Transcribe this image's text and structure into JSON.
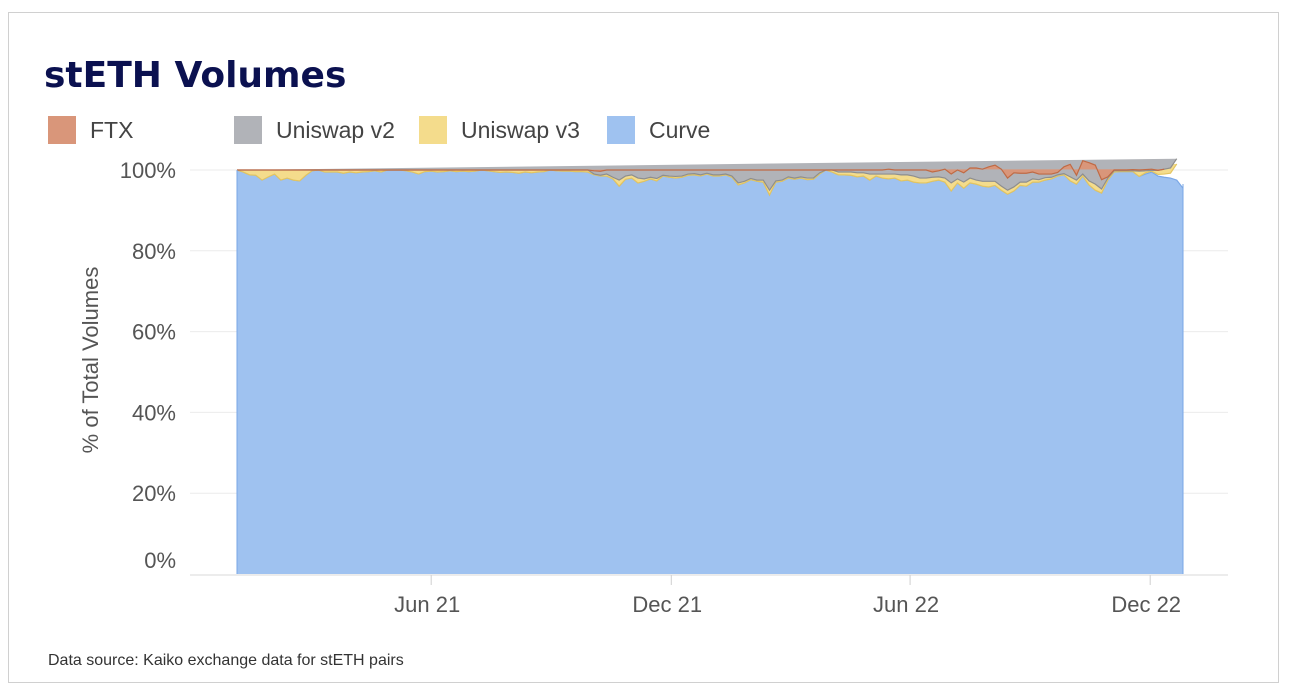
{
  "chart_data": {
    "type": "area",
    "stacked": true,
    "normalized": true,
    "title": "stETH Volumes",
    "ylabel": "% of Total Volumes",
    "ylim": [
      0,
      100
    ],
    "yticks": [
      "0%",
      "20%",
      "40%",
      "60%",
      "80%",
      "100%"
    ],
    "x_range": [
      "2021-01-04",
      "2022-12-26"
    ],
    "xticks": [
      {
        "label": "Jun 21",
        "date": "2021-06-01"
      },
      {
        "label": "Dec 21",
        "date": "2021-12-01"
      },
      {
        "label": "Jun 22",
        "date": "2022-06-01"
      },
      {
        "label": "Dec 22",
        "date": "2022-12-01"
      }
    ],
    "legend": [
      {
        "name": "FTX",
        "color": "#d9967a"
      },
      {
        "name": "Uniswap v2",
        "color": "#b1b3b8"
      },
      {
        "name": "Uniswap v3",
        "color": "#f4dc8c"
      },
      {
        "name": "Curve",
        "color": "#9fc2f0"
      }
    ],
    "series": [
      {
        "name": "Curve",
        "color": "#9fc2f0",
        "line": "#7aa7e6",
        "values": [
          100,
          99.5,
          98.8,
          98.7,
          97.5,
          98.3,
          99,
          97.5,
          98,
          97.5,
          97.3,
          98.7,
          99.8,
          100,
          99.5,
          99.5,
          99.5,
          99.2,
          99.5,
          99.3,
          99.5,
          99.6,
          99.8,
          99.5,
          100,
          100,
          100,
          99.8,
          99.5,
          99,
          99.6,
          99.7,
          99.5,
          99.6,
          99.8,
          99.6,
          99.7,
          99.6,
          99.7,
          100,
          99.8,
          99.6,
          99.4,
          99.5,
          99.4,
          99.2,
          99.5,
          99.3,
          99.5,
          99.6,
          100,
          99.8,
          99.7,
          99.7,
          99.6,
          99.6,
          99.5,
          98.8,
          98.5,
          98.5,
          97.8,
          96,
          97.7,
          98,
          96.8,
          97.2,
          97.8,
          97.3,
          98.5,
          98.2,
          98,
          98.2,
          98.7,
          98.8,
          98.5,
          99,
          98.5,
          98.5,
          98.8,
          98.2,
          96.3,
          96.8,
          97.6,
          97.2,
          97,
          93.8,
          97,
          97.2,
          98,
          97.7,
          98,
          97.6,
          97.7,
          99,
          100,
          99.5,
          98.8,
          98.8,
          98.7,
          98.3,
          98.5,
          97.5,
          98.5,
          98,
          97.8,
          98,
          97.3,
          97.5,
          97,
          96.8,
          96.8,
          97.2,
          97.5,
          97,
          94.8,
          96.8,
          95.5,
          96.8,
          96.5,
          96,
          95.8,
          96.2,
          95,
          94,
          94.8,
          96.2,
          96,
          97,
          97,
          97.5,
          97.8,
          98.5,
          98.8,
          97.3,
          96.5,
          98.5,
          96.3,
          95,
          94.3,
          97.5,
          99.5,
          99.6,
          99.6,
          99.6,
          98.4,
          99,
          99.5,
          98.5,
          98.2,
          98,
          97.5,
          95.5
        ]
      },
      {
        "name": "Uniswap v3",
        "color": "#f4dc8c",
        "line": "#e4c560",
        "values": [
          0,
          0,
          0,
          0,
          0,
          0,
          0,
          0,
          0,
          0,
          0,
          0,
          0,
          0,
          0,
          0,
          0,
          0,
          0,
          0,
          0,
          0,
          0,
          0,
          0,
          0,
          0,
          0,
          0,
          0,
          0,
          0,
          0,
          0,
          0,
          0,
          0,
          0,
          0,
          0,
          0,
          0,
          0,
          0,
          0,
          0,
          0,
          0,
          0,
          0,
          0,
          0,
          0,
          0,
          0,
          0,
          0,
          0,
          0,
          0,
          0,
          0,
          0,
          0,
          0,
          0,
          0,
          0,
          0,
          0,
          0,
          0,
          0,
          0,
          0,
          0,
          0,
          0,
          0,
          0,
          0,
          0,
          0,
          0,
          0,
          0,
          0,
          0,
          0,
          0,
          0,
          0,
          0,
          0,
          0,
          0,
          0,
          0,
          0,
          0,
          0,
          0,
          0,
          0,
          0,
          0,
          0,
          0,
          0,
          0,
          0,
          0,
          0,
          0,
          0,
          0,
          0,
          0,
          0,
          0,
          0,
          0,
          0,
          0,
          0,
          0,
          0,
          0,
          0,
          0,
          0,
          0,
          0,
          0,
          0,
          0,
          0,
          0,
          0,
          0,
          0,
          0,
          0,
          0,
          0,
          0.3,
          0.2,
          0.4,
          0.8,
          1.2,
          4
        ]
      },
      {
        "name": "Uniswap v2",
        "color": "#b1b3b8",
        "line": "#8e8e8e",
        "values": [
          0,
          0.5,
          1.2,
          1.3,
          2.5,
          1.7,
          1,
          2.5,
          2,
          2.5,
          2.7,
          1.3,
          0.2,
          0,
          0.5,
          0.5,
          0.5,
          0.8,
          0.5,
          0.7,
          0.5,
          0.4,
          0.2,
          0.5,
          0,
          0,
          0,
          0.2,
          0.5,
          1,
          0.4,
          0.3,
          0.5,
          0.4,
          0.2,
          0.4,
          0.3,
          0.4,
          0.3,
          0,
          0.2,
          0.4,
          0.6,
          0.5,
          0.6,
          0.8,
          0.5,
          0.7,
          0.5,
          0.4,
          0,
          0.2,
          0.3,
          0.3,
          0.4,
          0.4,
          0.5,
          0.2,
          0.2,
          0.5,
          0.4,
          1.5,
          0.8,
          0.8,
          1.2,
          0.6,
          0.4,
          0.6,
          0.2,
          0.3,
          0.4,
          0.3,
          0.3,
          0.3,
          0.3,
          0.2,
          0.3,
          0.3,
          0.2,
          0.3,
          0.5,
          0.4,
          0.3,
          0.3,
          0.5,
          1.2,
          0.3,
          0.3,
          0.3,
          0.3,
          0.3,
          0.4,
          0.3,
          0.3,
          0,
          0.5,
          0.7,
          0.7,
          0.8,
          1,
          0.8,
          1.5,
          0.5,
          1,
          1.2,
          1,
          1.5,
          1.3,
          1.5,
          1.2,
          1.2,
          1,
          0.8,
          1,
          2,
          1,
          1.5,
          1.2,
          1,
          1.2,
          1.4,
          1,
          1,
          1,
          1,
          0.8,
          1,
          0.8,
          0.6,
          0.6,
          0.4,
          0.3,
          0.3,
          1,
          1,
          0.5,
          1,
          1.5,
          1,
          0.5,
          0.3,
          0.2,
          0.2,
          0.2,
          1.3,
          0.5,
          0.2,
          1,
          1.2,
          1.3,
          1.3,
          0.5
        ]
      },
      {
        "name": "FTX",
        "color": "#d9967a",
        "line": "#c06a44",
        "values": [
          0,
          0,
          0,
          0,
          0,
          0,
          0,
          0,
          0,
          0,
          0,
          0,
          0,
          0,
          0,
          0,
          0,
          0,
          0,
          0,
          0,
          0,
          0,
          0,
          0,
          0,
          0,
          0,
          0,
          0,
          0,
          0,
          0,
          0,
          0,
          0,
          0,
          0,
          0,
          0,
          0,
          0,
          0,
          0,
          0,
          0,
          0,
          0,
          0,
          0,
          0,
          0,
          0,
          0,
          0,
          0,
          0,
          0.8,
          1,
          1,
          1.8,
          2.5,
          1.5,
          1.2,
          2,
          2.2,
          1.8,
          2.1,
          1.3,
          1.5,
          1.6,
          1.5,
          1,
          0.9,
          1.2,
          0.8,
          1.2,
          1.2,
          1,
          1.5,
          3.2,
          2.8,
          2.1,
          2.5,
          2.5,
          5,
          2.7,
          2.5,
          1.7,
          2,
          1.7,
          2,
          2,
          0.7,
          0,
          0,
          0.5,
          0.5,
          0.5,
          0.7,
          0.7,
          1,
          1,
          1,
          1.2,
          1,
          1.2,
          1.2,
          1.5,
          2,
          2,
          1.3,
          1.5,
          2.2,
          2.2,
          2.2,
          2.3,
          2.5,
          3,
          3,
          3.6,
          4,
          4.2,
          3,
          3.5,
          2.2,
          2.2,
          1.7,
          1.4,
          0.9,
          0.8,
          0.6,
          1.7,
          3.1,
          1.2,
          3.3,
          4.5,
          4.7,
          2.3,
          0.3,
          0.2,
          0.2,
          0.2,
          0.3,
          0.3,
          0.3,
          0.3,
          0,
          0
        ]
      }
    ]
  },
  "footer": {
    "source": "Data source: Kaiko exchange data for stETH pairs"
  }
}
